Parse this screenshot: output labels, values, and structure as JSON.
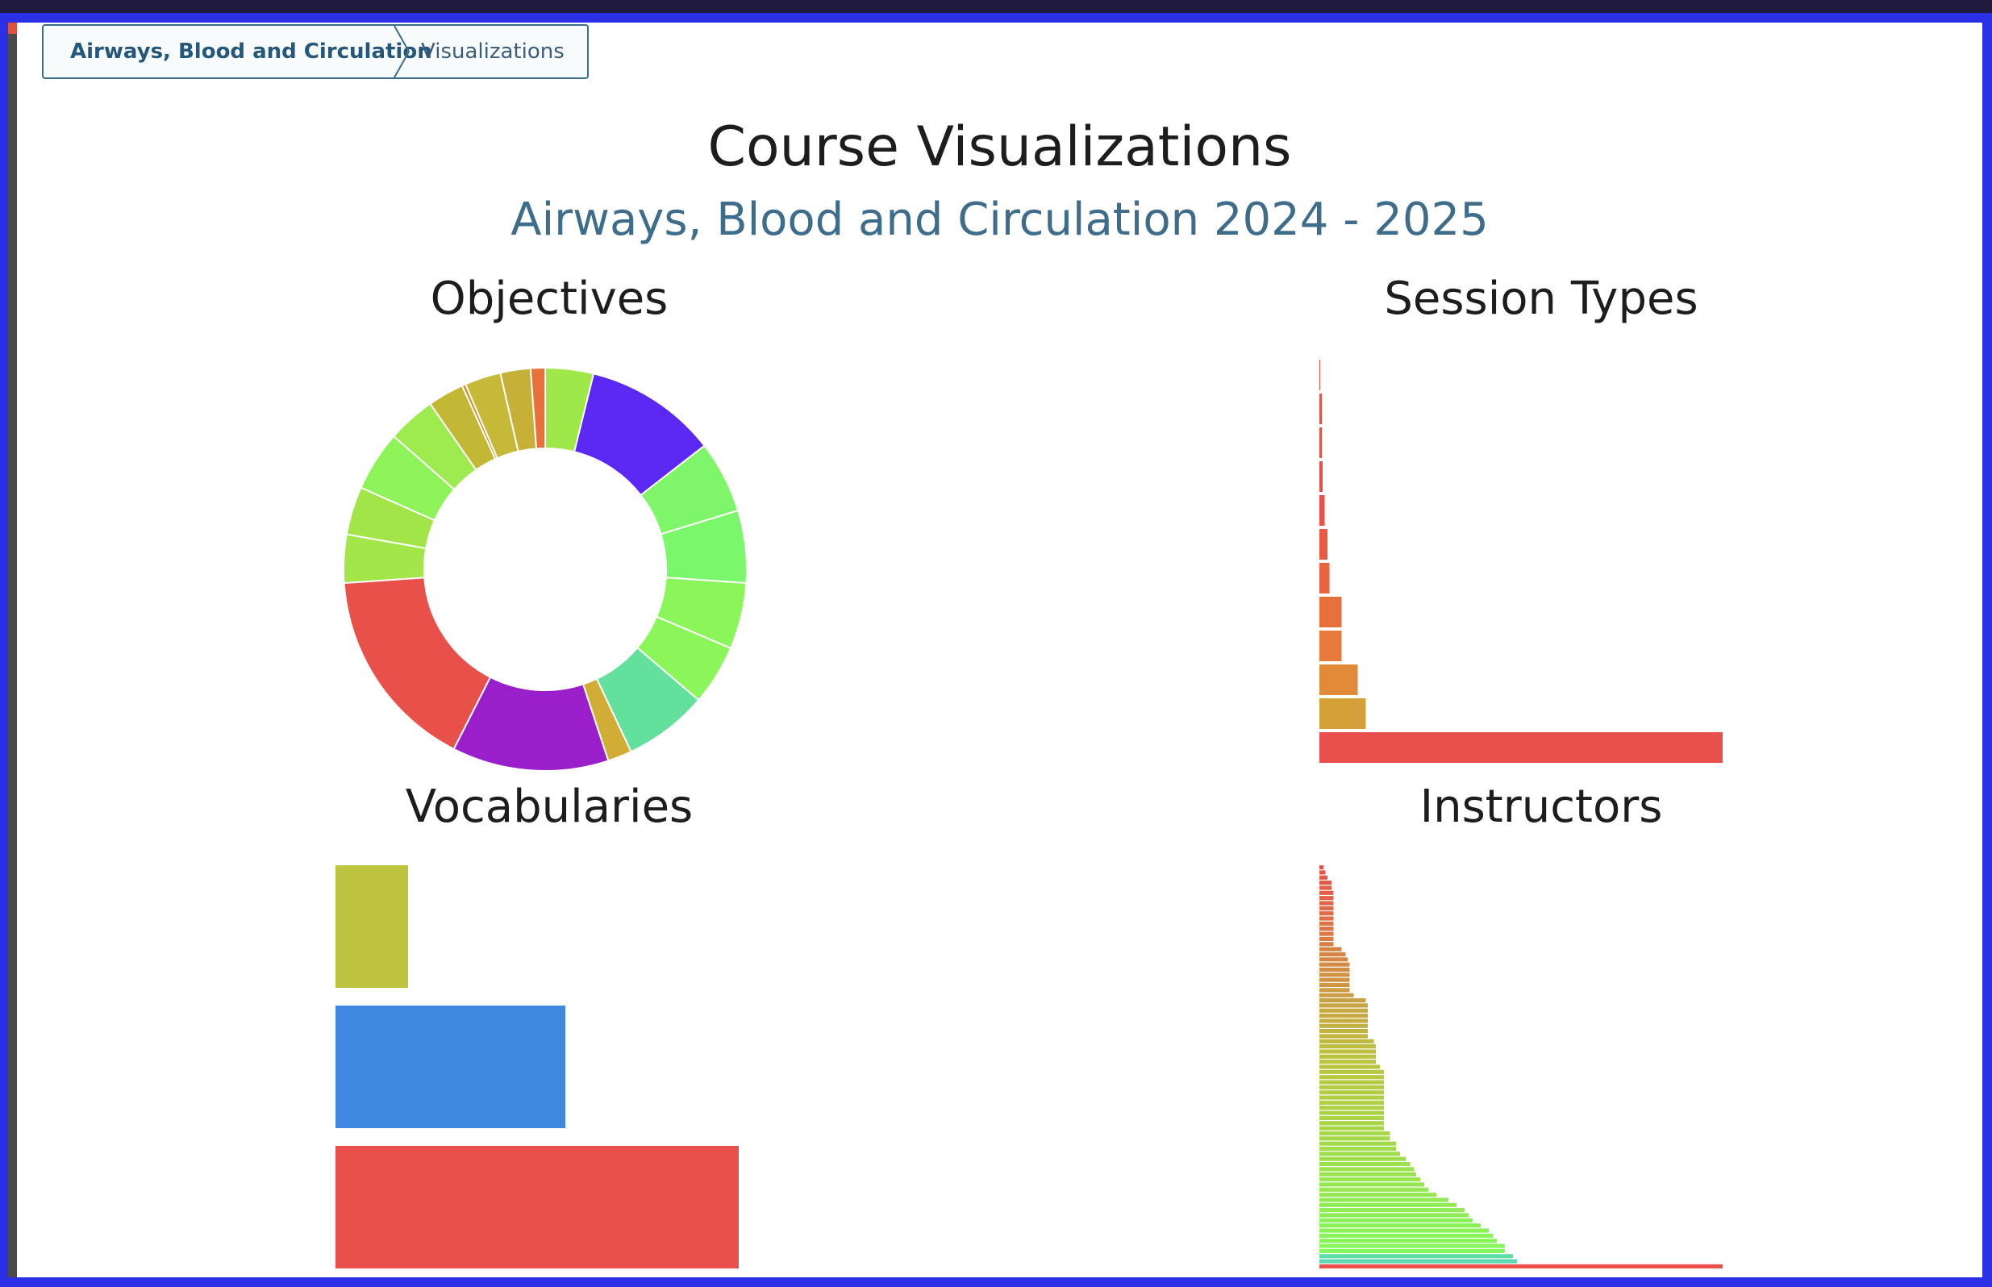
{
  "breadcrumb": {
    "items": [
      "Airways, Blood and Circulation",
      "Visualizations"
    ]
  },
  "page": {
    "title": "Course Visualizations",
    "subtitle": "Airways, Blood and Circulation 2024 - 2025"
  },
  "sections": {
    "objectives": "Objectives",
    "session_types": "Session Types",
    "vocabularies": "Vocabularies",
    "instructors": "Instructors"
  },
  "colors": {
    "accent_blue": "#3e6d8b",
    "frame_blue": "#2b2fe6",
    "link": "#24577a"
  },
  "chart_data": [
    {
      "type": "pie",
      "chart": "objectives",
      "title": "Objectives",
      "values": [
        4.0,
        11.0,
        6.0,
        6.0,
        5.5,
        5.0,
        7.0,
        2.0,
        13.0,
        17.0,
        4.0,
        4.0,
        5.0,
        4.0,
        3.0,
        0.3,
        3.0,
        2.5,
        1.2
      ],
      "colors": [
        "#9ee947",
        "#5a28f2",
        "#7ff569",
        "#7bf76c",
        "#8af65a",
        "#8af65a",
        "#63e19c",
        "#d2ad36",
        "#9b1ecb",
        "#e8514a",
        "#a3e64a",
        "#a2e548",
        "#8ef358",
        "#9deb4e",
        "#c3b835",
        "#d48a2d",
        "#c6b938",
        "#c6b038",
        "#e8703a"
      ]
    },
    {
      "type": "bar",
      "chart": "session_types",
      "title": "Session Types",
      "orientation": "horizontal",
      "values": [
        0.1,
        0.6,
        0.6,
        0.8,
        1.3,
        2.0,
        2.5,
        5.5,
        5.5,
        9.5,
        11.5,
        100
      ],
      "colors": [
        "#e8514a",
        "#e8514a",
        "#e8514a",
        "#e8514a",
        "#e8514a",
        "#e85a42",
        "#e8633e",
        "#e66f3c",
        "#e67a3a",
        "#df8b38",
        "#d6a038",
        "#ea504b"
      ]
    },
    {
      "type": "bar",
      "chart": "vocabularies",
      "title": "Vocabularies",
      "orientation": "horizontal",
      "values": [
        18,
        57,
        100
      ],
      "colors": [
        "#bec43f",
        "#3f88e0",
        "#ea504b"
      ]
    },
    {
      "type": "bar",
      "chart": "instructors",
      "title": "Instructors",
      "orientation": "horizontal",
      "values": [
        1,
        1.5,
        2,
        3,
        3,
        3.5,
        3.5,
        3.5,
        3.5,
        3.5,
        3.5,
        3.5,
        3.5,
        3.5,
        3.5,
        3.5,
        5.5,
        6.5,
        7,
        7.5,
        7.5,
        7.5,
        7.5,
        7.5,
        7.5,
        8.5,
        11.5,
        12,
        12,
        12,
        12,
        12,
        12,
        12,
        13.5,
        14,
        14,
        14,
        14,
        15,
        16,
        16,
        16,
        16,
        16,
        16,
        16,
        16,
        16,
        16,
        16,
        16,
        17.5,
        17.5,
        19,
        19,
        20,
        21.5,
        22.5,
        23.5,
        24,
        25,
        26,
        27,
        29,
        32,
        34,
        36,
        37,
        38,
        40,
        42,
        43,
        44,
        46,
        46,
        48,
        49,
        100
      ],
      "color_start": "#e8514a",
      "color_mid": "#bcc43f",
      "color_end": "#84f75c",
      "last_colors": [
        "#5ddea6",
        "#5cd9b0",
        "#ea504b"
      ]
    }
  ]
}
